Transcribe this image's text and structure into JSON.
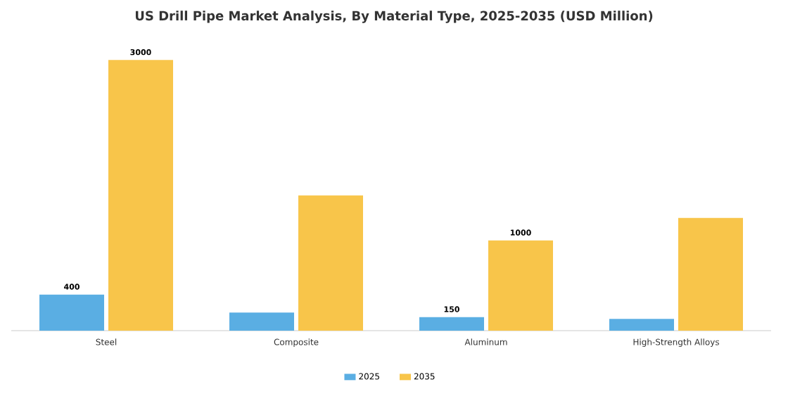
{
  "chart_data": {
    "type": "bar",
    "title": "US Drill Pipe Market Analysis, By Material Type, 2025-2035 (USD Million)",
    "categories": [
      "Steel",
      "Composite",
      "Aluminum",
      "High-Strength Alloys"
    ],
    "series": [
      {
        "name": "2025",
        "color": "#5aaee3",
        "values": [
          400,
          200,
          150,
          130
        ],
        "value_labels": [
          "400",
          null,
          "150",
          null
        ]
      },
      {
        "name": "2035",
        "color": "#f8c54a",
        "values": [
          3000,
          1500,
          1000,
          1250
        ],
        "value_labels": [
          "3000",
          null,
          "1000",
          null
        ]
      }
    ],
    "legend": "bottom"
  }
}
